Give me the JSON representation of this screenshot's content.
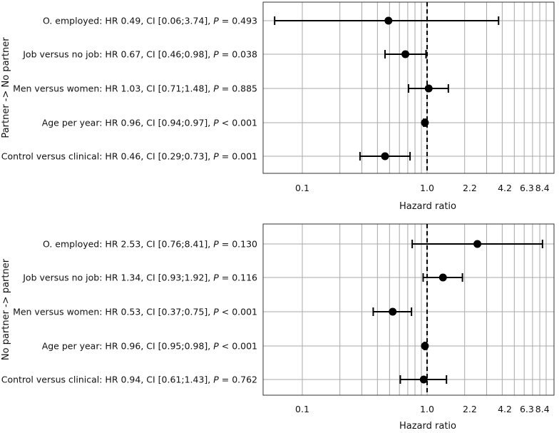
{
  "chart_data": [
    {
      "type": "forest",
      "ylabel": "Partner -> No partner",
      "xlabel": "Hazard ratio",
      "xscale": "log",
      "xlim": [
        0.05,
        9.5
      ],
      "xticks": [
        "0.1",
        "1.0",
        "2.2",
        "4.2",
        "6.3",
        "8.4"
      ],
      "reference_line": 1.0,
      "rows": [
        {
          "name": "O. employed",
          "hr": 0.49,
          "lo": 0.06,
          "hi": 3.74,
          "label_text": "O. employed: HR 0.49, CI [0.06;3.74], ",
          "p_text": " = 0.493"
        },
        {
          "name": "Job versus no job",
          "hr": 0.67,
          "lo": 0.46,
          "hi": 0.98,
          "label_text": "Job versus no job: HR 0.67, CI [0.46;0.98], ",
          "p_text": " = 0.038"
        },
        {
          "name": "Men versus women",
          "hr": 1.03,
          "lo": 0.71,
          "hi": 1.48,
          "label_text": "Men versus women: HR 1.03, CI [0.71;1.48], ",
          "p_text": " = 0.885"
        },
        {
          "name": "Age per year",
          "hr": 0.96,
          "lo": 0.94,
          "hi": 0.97,
          "label_text": "Age per year: HR 0.96, CI [0.94;0.97], ",
          "p_text": " < 0.001"
        },
        {
          "name": "Control versus clinical",
          "hr": 0.46,
          "lo": 0.29,
          "hi": 0.73,
          "label_text": "Control versus clinical: HR 0.46, CI [0.29;0.73], ",
          "p_text": " = 0.001"
        }
      ]
    },
    {
      "type": "forest",
      "ylabel": "No partner -> partner",
      "xlabel": "Hazard ratio",
      "xscale": "log",
      "xlim": [
        0.05,
        9.5
      ],
      "xticks": [
        "0.1",
        "1.0",
        "2.2",
        "4.2",
        "6.3",
        "8.4"
      ],
      "reference_line": 1.0,
      "rows": [
        {
          "name": "O. employed",
          "hr": 2.53,
          "lo": 0.76,
          "hi": 8.41,
          "label_text": "O. employed: HR 2.53, CI [0.76;8.41], ",
          "p_text": " = 0.130"
        },
        {
          "name": "Job versus no job",
          "hr": 1.34,
          "lo": 0.93,
          "hi": 1.92,
          "label_text": "Job versus no job: HR 1.34, CI [0.93;1.92], ",
          "p_text": " = 0.116"
        },
        {
          "name": "Men versus women",
          "hr": 0.53,
          "lo": 0.37,
          "hi": 0.75,
          "label_text": "Men versus women: HR 0.53, CI [0.37;0.75], ",
          "p_text": " < 0.001"
        },
        {
          "name": "Age per year",
          "hr": 0.96,
          "lo": 0.95,
          "hi": 0.98,
          "label_text": "Age per year: HR 0.96, CI [0.95;0.98], ",
          "p_text": " < 0.001"
        },
        {
          "name": "Control versus clinical",
          "hr": 0.94,
          "lo": 0.61,
          "hi": 1.43,
          "label_text": "Control versus clinical: HR 0.94, CI [0.61;1.43], ",
          "p_text": " = 0.762"
        }
      ]
    }
  ],
  "p_symbol": "P"
}
